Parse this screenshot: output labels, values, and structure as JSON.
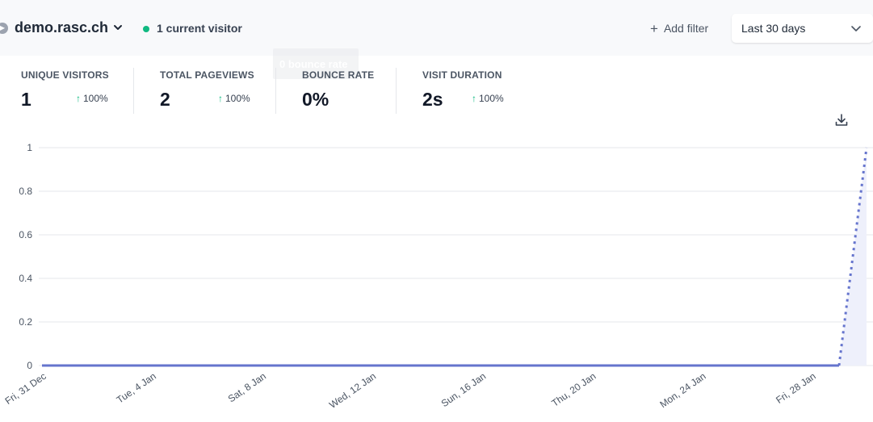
{
  "header": {
    "site_name": "demo.rasc.ch",
    "current_visitors": "1 current visitor",
    "add_filter_label": "Add filter",
    "period_label": "Last 30 days"
  },
  "tooltip_ghost": "0 bounce rate",
  "stats": [
    {
      "label": "UNIQUE VISITORS",
      "value": "1",
      "change": "100%"
    },
    {
      "label": "TOTAL PAGEVIEWS",
      "value": "2",
      "change": "100%"
    },
    {
      "label": "BOUNCE RATE",
      "value": "0%",
      "change": ""
    },
    {
      "label": "VISIT DURATION",
      "value": "2s",
      "change": "100%"
    }
  ],
  "colors": {
    "accent": "#6574cd",
    "live_dot": "#10b981",
    "up_arrow": "#10b981",
    "grid": "#e5e7eb",
    "area_fill": "#eef0fb"
  },
  "icons": [
    "site-favicon-icon",
    "chevron-down-icon",
    "plus-icon",
    "arrow-up-icon",
    "download-icon"
  ],
  "chart_data": {
    "type": "line",
    "ylim": [
      0,
      1
    ],
    "y_ticks": [
      "0",
      "0.2",
      "0.4",
      "0.6",
      "0.8",
      "1"
    ],
    "x_ticks": [
      "Fri, 31 Dec",
      "Tue, 4 Jan",
      "Sat, 8 Jan",
      "Wed, 12 Jan",
      "Sun, 16 Jan",
      "Thu, 20 Jan",
      "Mon, 24 Jan",
      "Fri, 28 Jan"
    ],
    "grid": true,
    "series": [
      {
        "x": [
          "2021-12-31",
          "2022-01-01",
          "2022-01-02",
          "2022-01-03",
          "2022-01-04",
          "2022-01-05",
          "2022-01-06",
          "2022-01-07",
          "2022-01-08",
          "2022-01-09",
          "2022-01-10",
          "2022-01-11",
          "2022-01-12",
          "2022-01-13",
          "2022-01-14",
          "2022-01-15",
          "2022-01-16",
          "2022-01-17",
          "2022-01-18",
          "2022-01-19",
          "2022-01-20",
          "2022-01-21",
          "2022-01-22",
          "2022-01-23",
          "2022-01-24",
          "2022-01-25",
          "2022-01-26",
          "2022-01-27",
          "2022-01-28",
          "2022-01-29",
          "2022-01-30"
        ],
        "values": [
          0,
          0,
          0,
          0,
          0,
          0,
          0,
          0,
          0,
          0,
          0,
          0,
          0,
          0,
          0,
          0,
          0,
          0,
          0,
          0,
          0,
          0,
          0,
          0,
          0,
          0,
          0,
          0,
          0,
          0,
          1
        ],
        "style": "solid line, last segment dotted"
      }
    ]
  }
}
